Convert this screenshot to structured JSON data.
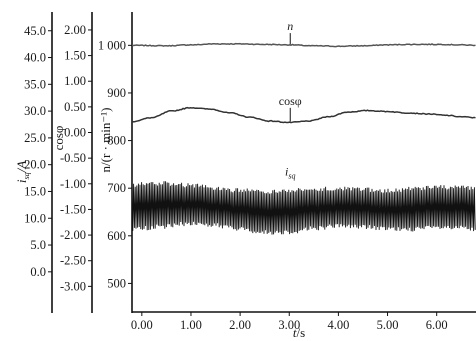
{
  "chart_data": {
    "type": "line",
    "x": {
      "label_var": "t",
      "label_unit": "/s",
      "range": [
        -0.2,
        6.8
      ],
      "ticks": [
        "0.00",
        "1.00",
        "2.00",
        "3.00",
        "4.00",
        "5.00",
        "6.00"
      ],
      "tick_values": [
        0,
        1,
        2,
        3,
        4,
        5,
        6
      ]
    },
    "y_axes": [
      {
        "id": "isq",
        "label_var": "i",
        "label_sub": "sq",
        "label_unit": "/A",
        "range": [
          -7.5,
          48.5
        ],
        "ticks": [
          "45.0",
          "40.0",
          "35.0",
          "30.0",
          "25.0",
          "20.0",
          "15.0",
          "10.0",
          "5.0",
          "0.0"
        ],
        "tick_values": [
          45,
          40,
          35,
          30,
          25,
          20,
          15,
          10,
          5,
          0
        ]
      },
      {
        "id": "cosphi",
        "label": "cosφ",
        "range": [
          -3.5,
          2.35
        ],
        "ticks": [
          "2.00",
          "1.50",
          "1.00",
          "0.50",
          "0.00",
          "-0.50",
          "-1.00",
          "-1.50",
          "-2.00",
          "-2.50",
          "-3.00"
        ],
        "tick_values": [
          2,
          1.5,
          1,
          0.5,
          0,
          -0.5,
          -1,
          -1.5,
          -2,
          -2.5,
          -3
        ]
      },
      {
        "id": "speed",
        "label": "n/(r · min⁻¹)",
        "range": [
          440,
          1070
        ],
        "ticks": [
          "1 000",
          "900",
          "800",
          "700",
          "600",
          "500"
        ],
        "tick_values": [
          1000,
          900,
          800,
          700,
          600,
          500
        ]
      }
    ],
    "series": [
      {
        "name": "n",
        "axis": "speed",
        "color": "#555555",
        "x": [
          -0.2,
          0.5,
          1.0,
          1.5,
          2.0,
          2.5,
          3.0,
          3.5,
          4.0,
          4.5,
          5.0,
          5.5,
          6.0,
          6.5,
          6.8
        ],
        "y": [
          1000,
          999,
          1001,
          1003,
          1003,
          1002,
          1001,
          999,
          998,
          999,
          1001,
          1002,
          1002,
          1001,
          1000
        ]
      },
      {
        "name": "cosφ",
        "axis": "speed",
        "color": "#333333",
        "x": [
          -0.2,
          0.2,
          0.6,
          1.0,
          1.4,
          1.8,
          2.2,
          2.6,
          3.0,
          3.4,
          3.8,
          4.2,
          4.6,
          5.0,
          5.4,
          5.8,
          6.2,
          6.5,
          6.8
        ],
        "y": [
          840,
          848,
          862,
          869,
          866,
          858,
          849,
          841,
          838,
          841,
          850,
          860,
          863,
          861,
          858,
          856,
          853,
          850,
          848
        ]
      },
      {
        "name": "i_sq",
        "axis": "speed",
        "color": "#111111",
        "type": "band",
        "x": [
          -0.2,
          0.4,
          1.0,
          1.5,
          2.0,
          2.5,
          3.0,
          3.5,
          4.0,
          4.5,
          5.0,
          5.5,
          6.0,
          6.5,
          6.8
        ],
        "upper": [
          712,
          715,
          711,
          704,
          700,
          697,
          699,
          703,
          705,
          702,
          699,
          703,
          707,
          708,
          705
        ],
        "lower": [
          609,
          614,
          621,
          617,
          609,
          602,
          603,
          611,
          616,
          614,
          609,
          609,
          612,
          611,
          608
        ]
      }
    ],
    "annotations": [
      {
        "text": "n",
        "italic": true,
        "x": 3.02,
        "y": 1032
      },
      {
        "text": "cosφ",
        "italic": false,
        "x": 3.02,
        "y": 875
      },
      {
        "text": "i",
        "sub": "sq",
        "italic": true,
        "x": 3.02,
        "y": 727
      }
    ]
  }
}
